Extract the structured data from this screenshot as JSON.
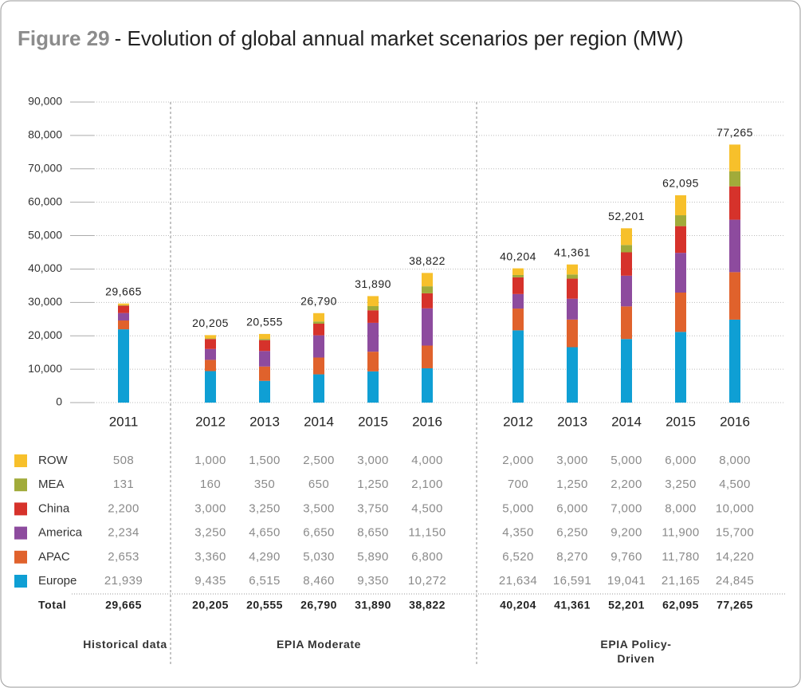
{
  "chart_data": {
    "type": "stacked-bar",
    "title_label": "Figure 29",
    "title": "- Evolution of global annual market scenarios per region (MW)",
    "groups": [
      {
        "label": "Historical data",
        "categories": [
          "2011"
        ]
      },
      {
        "label": "EPIA Moderate",
        "categories": [
          "2012",
          "2013",
          "2014",
          "2015",
          "2016"
        ]
      },
      {
        "label": "EPIA Policy-Driven",
        "categories": [
          "2012",
          "2013",
          "2014",
          "2015",
          "2016"
        ]
      }
    ],
    "ylim": [
      0,
      90000
    ],
    "yticks": [
      0,
      {
        "value": 10000,
        "label": "10,000"
      },
      {
        "value": 20000,
        "label": "20,000"
      },
      {
        "value": 30000,
        "label": "30,000"
      },
      {
        "value": 40000,
        "label": "40,000"
      },
      {
        "value": 50000,
        "label": "50,000"
      },
      {
        "value": 60000,
        "label": "60,000"
      },
      {
        "value": 70000,
        "label": "70,000"
      },
      {
        "value": 80000,
        "label": "80,000"
      },
      {
        "value": 90000,
        "label": "90,000"
      }
    ],
    "grid": true,
    "series": [
      {
        "name": "ROW",
        "color": "#f7c02b",
        "values": [
          508,
          1000,
          1500,
          2500,
          3000,
          4000,
          2000,
          3000,
          5000,
          6000,
          8000
        ],
        "value_labels": [
          "508",
          "1,000",
          "1,500",
          "2,500",
          "3,000",
          "4,000",
          "2,000",
          "3,000",
          "5,000",
          "6,000",
          "8,000"
        ]
      },
      {
        "name": "MEA",
        "color": "#a1ab3a",
        "values": [
          131,
          160,
          350,
          650,
          1250,
          2100,
          700,
          1250,
          2200,
          3250,
          4500
        ],
        "value_labels": [
          "131",
          "160",
          "350",
          "650",
          "1,250",
          "2,100",
          "700",
          "1,250",
          "2,200",
          "3,250",
          "4,500"
        ]
      },
      {
        "name": "China",
        "color": "#d6322b",
        "values": [
          2200,
          3000,
          3250,
          3500,
          3750,
          4500,
          5000,
          6000,
          7000,
          8000,
          10000
        ],
        "value_labels": [
          "2,200",
          "3,000",
          "3,250",
          "3,500",
          "3,750",
          "4,500",
          "5,000",
          "6,000",
          "7,000",
          "8,000",
          "10,000"
        ]
      },
      {
        "name": "America",
        "color": "#8d4b9e",
        "values": [
          2234,
          3250,
          4650,
          6650,
          8650,
          11150,
          4350,
          6250,
          9200,
          11900,
          15700
        ],
        "value_labels": [
          "2,234",
          "3,250",
          "4,650",
          "6,650",
          "8,650",
          "11,150",
          "4,350",
          "6,250",
          "9,200",
          "11,900",
          "15,700"
        ]
      },
      {
        "name": "APAC",
        "color": "#e0622c",
        "values": [
          2653,
          3360,
          4290,
          5030,
          5890,
          6800,
          6520,
          8270,
          9760,
          11780,
          14220
        ],
        "value_labels": [
          "2,653",
          "3,360",
          "4,290",
          "5,030",
          "5,890",
          "6,800",
          "6,520",
          "8,270",
          "9,760",
          "11,780",
          "14,220"
        ]
      },
      {
        "name": "Europe",
        "color": "#0f9fd4",
        "values": [
          21939,
          9435,
          6515,
          8460,
          9350,
          10272,
          21634,
          16591,
          19041,
          21165,
          24845
        ],
        "value_labels": [
          "21,939",
          "9,435",
          "6,515",
          "8,460",
          "9,350",
          "10,272",
          "21,634",
          "16,591",
          "19,041",
          "21,165",
          "24,845"
        ]
      }
    ],
    "totals": {
      "name": "Total",
      "values": [
        29665,
        20205,
        20555,
        26790,
        31890,
        38822,
        40204,
        41361,
        52201,
        62095,
        77265
      ],
      "value_labels": [
        "29,665",
        "20,205",
        "20,555",
        "26,790",
        "31,890",
        "38,822",
        "40,204",
        "41,361",
        "52,201",
        "62,095",
        "77,265"
      ]
    }
  }
}
